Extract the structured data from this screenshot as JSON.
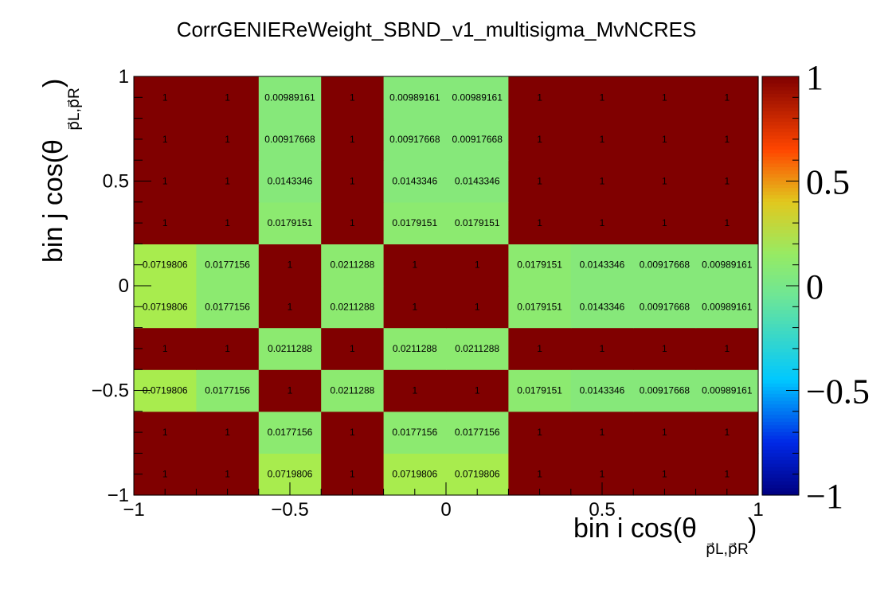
{
  "chart_data": {
    "type": "heatmap",
    "title": "CorrGENIEReWeight_SBND_v1_multisigma_MvNCRES",
    "xlabel": {
      "main": "bin i cos(θ",
      "sub": "p⃗L,p⃗R",
      "suffix": ")"
    },
    "ylabel": {
      "main": "bin j cos(θ",
      "sub": "p⃗L,p⃗R",
      "suffix": ")"
    },
    "xlim": [
      -1,
      1
    ],
    "ylim": [
      -1,
      1
    ],
    "zlim": [
      -1,
      1
    ],
    "x_edges": [
      -1,
      -0.8,
      -0.6,
      -0.4,
      -0.2,
      0,
      0.2,
      0.4,
      0.6,
      0.8,
      1
    ],
    "y_edges": [
      -1,
      -0.8,
      -0.6,
      -0.4,
      -0.2,
      0,
      0.2,
      0.4,
      0.6,
      0.8,
      1
    ],
    "x_ticks": [
      "−1",
      "−0.5",
      "0",
      "0.5",
      "1"
    ],
    "x_tick_values": [
      -1,
      -0.5,
      0,
      0.5,
      1
    ],
    "y_ticks": [
      "−1",
      "−0.5",
      "0",
      "0.5",
      "1"
    ],
    "y_tick_values": [
      -1,
      -0.5,
      0,
      0.5,
      1
    ],
    "z_ticks": [
      "−1",
      "−0.5",
      "0",
      "0.5",
      "1"
    ],
    "z_tick_values": [
      -1,
      -0.5,
      0,
      0.5,
      1
    ],
    "values_rows_bottom_to_top": [
      [
        "1",
        "1",
        "0.0719806",
        "1",
        "0.0719806",
        "0.0719806",
        "1",
        "1",
        "1",
        "1"
      ],
      [
        "1",
        "1",
        "0.0177156",
        "1",
        "0.0177156",
        "0.0177156",
        "1",
        "1",
        "1",
        "1"
      ],
      [
        "0.0719806",
        "0.0177156",
        "1",
        "0.0211288",
        "1",
        "1",
        "0.0179151",
        "0.0143346",
        "0.00917668",
        "0.00989161"
      ],
      [
        "1",
        "1",
        "0.0211288",
        "1",
        "0.0211288",
        "0.0211288",
        "1",
        "1",
        "1",
        "1"
      ],
      [
        "0.0719806",
        "0.0177156",
        "1",
        "0.0211288",
        "1",
        "1",
        "0.0179151",
        "0.0143346",
        "0.00917668",
        "0.00989161"
      ],
      [
        "0.0719806",
        "0.0177156",
        "1",
        "0.0211288",
        "1",
        "1",
        "0.0179151",
        "0.0143346",
        "0.00917668",
        "0.00989161"
      ],
      [
        "1",
        "1",
        "0.0179151",
        "1",
        "0.0179151",
        "0.0179151",
        "1",
        "1",
        "1",
        "1"
      ],
      [
        "1",
        "1",
        "0.0143346",
        "1",
        "0.0143346",
        "0.0143346",
        "1",
        "1",
        "1",
        "1"
      ],
      [
        "1",
        "1",
        "0.00917668",
        "1",
        "0.00917668",
        "0.00917668",
        "1",
        "1",
        "1",
        "1"
      ],
      [
        "1",
        "1",
        "0.00989161",
        "1",
        "0.00989161",
        "0.00989161",
        "1",
        "1",
        "1",
        "1"
      ]
    ],
    "colorscale": "rainbow (ROOT default palette)",
    "color_max": "#800000",
    "grid": false
  }
}
